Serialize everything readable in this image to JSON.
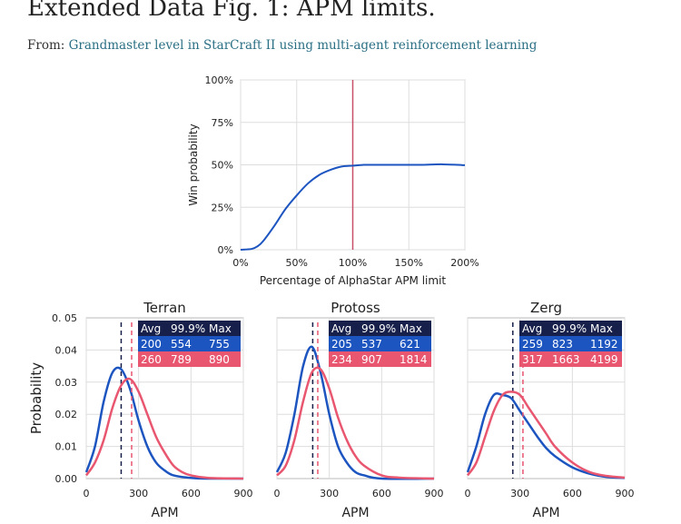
{
  "header": {
    "title": "Extended Data Fig. 1: APM limits.",
    "from_label": "From:",
    "source_link": "Grandmaster level in StarCraft II using multi-agent reinforcement learning"
  },
  "colors": {
    "blue": "#1d55c0",
    "pink": "#e8566f",
    "navy": "#17204a",
    "limit_line": "#c8506a"
  },
  "chart_data": [
    {
      "type": "line",
      "title": "",
      "xlabel": "Percentage of AlphaStar APM limit",
      "ylabel": "Win probability",
      "xlim": [
        0,
        200
      ],
      "ylim": [
        0,
        100
      ],
      "xticks": [
        {
          "v": 0,
          "label": "0%"
        },
        {
          "v": 50,
          "label": "50%"
        },
        {
          "v": 100,
          "label": "100%"
        },
        {
          "v": 150,
          "label": "150%"
        },
        {
          "v": 200,
          "label": "200%"
        }
      ],
      "yticks": [
        {
          "v": 0,
          "label": "0%"
        },
        {
          "v": 25,
          "label": "25%"
        },
        {
          "v": 50,
          "label": "50%"
        },
        {
          "v": 75,
          "label": "75%"
        },
        {
          "v": 100,
          "label": "100%"
        }
      ],
      "vline": 100,
      "series": [
        {
          "name": "win",
          "x": [
            0,
            10,
            15,
            20,
            30,
            40,
            50,
            60,
            70,
            80,
            90,
            100,
            110,
            120,
            140,
            160,
            180,
            200
          ],
          "y": [
            0,
            0.5,
            2,
            5,
            14,
            24,
            32,
            39,
            44,
            47,
            49,
            49.5,
            50,
            50,
            50,
            50,
            50.3,
            49.8
          ]
        }
      ]
    },
    {
      "type": "line",
      "title": "Terran",
      "xlabel": "APM",
      "ylabel": "Probability",
      "xlim": [
        0,
        900
      ],
      "ylim": [
        0,
        0.05
      ],
      "xticks": [
        {
          "v": 0,
          "label": "0"
        },
        {
          "v": 300,
          "label": "300"
        },
        {
          "v": 600,
          "label": "600"
        },
        {
          "v": 900,
          "label": "900"
        }
      ],
      "yticks": [
        {
          "v": 0,
          "label": "0.00"
        },
        {
          "v": 0.01,
          "label": "0.01"
        },
        {
          "v": 0.02,
          "label": "0.02"
        },
        {
          "v": 0.03,
          "label": "0.03"
        },
        {
          "v": 0.04,
          "label": "0.04"
        },
        {
          "v": 0.05,
          "label": "0. 05"
        }
      ],
      "table": {
        "header": [
          "Avg",
          "99.9%",
          "Max"
        ],
        "rows": [
          [
            "200",
            "554",
            "755"
          ],
          [
            "260",
            "789",
            "890"
          ]
        ]
      },
      "series": [
        {
          "name": "blue",
          "avg": 200,
          "x": [
            0,
            50,
            100,
            150,
            200,
            250,
            300,
            350,
            400,
            450,
            500,
            600,
            700,
            900
          ],
          "y": [
            0.002,
            0.01,
            0.024,
            0.033,
            0.034,
            0.028,
            0.018,
            0.01,
            0.005,
            0.0025,
            0.001,
            0.0002,
            0,
            0
          ]
        },
        {
          "name": "pink",
          "avg": 260,
          "x": [
            0,
            50,
            100,
            150,
            200,
            250,
            300,
            350,
            400,
            450,
            500,
            550,
            600,
            700,
            900
          ],
          "y": [
            0.001,
            0.005,
            0.012,
            0.022,
            0.029,
            0.031,
            0.027,
            0.02,
            0.013,
            0.008,
            0.004,
            0.002,
            0.001,
            0.0002,
            0
          ]
        }
      ]
    },
    {
      "type": "line",
      "title": "Protoss",
      "xlabel": "APM",
      "ylabel": "",
      "xlim": [
        0,
        900
      ],
      "ylim": [
        0,
        0.05
      ],
      "xticks": [
        {
          "v": 0,
          "label": "0"
        },
        {
          "v": 300,
          "label": "300"
        },
        {
          "v": 600,
          "label": "600"
        },
        {
          "v": 900,
          "label": "900"
        }
      ],
      "yticks": [],
      "table": {
        "header": [
          "Avg",
          "99.9%",
          "Max"
        ],
        "rows": [
          [
            "205",
            "537",
            "621"
          ],
          [
            "234",
            "907",
            "1814"
          ]
        ]
      },
      "series": [
        {
          "name": "blue",
          "avg": 205,
          "x": [
            0,
            50,
            100,
            150,
            200,
            250,
            300,
            350,
            400,
            450,
            500,
            600,
            900
          ],
          "y": [
            0.002,
            0.008,
            0.02,
            0.035,
            0.041,
            0.033,
            0.02,
            0.01,
            0.005,
            0.002,
            0.001,
            0,
            0
          ]
        },
        {
          "name": "pink",
          "avg": 234,
          "x": [
            0,
            50,
            100,
            150,
            200,
            250,
            300,
            350,
            400,
            450,
            500,
            600,
            700,
            900
          ],
          "y": [
            0.001,
            0.004,
            0.012,
            0.024,
            0.033,
            0.034,
            0.028,
            0.019,
            0.012,
            0.007,
            0.004,
            0.001,
            0.0003,
            0
          ]
        }
      ]
    },
    {
      "type": "line",
      "title": "Zerg",
      "xlabel": "APM",
      "ylabel": "",
      "xlim": [
        0,
        900
      ],
      "ylim": [
        0,
        0.05
      ],
      "xticks": [
        {
          "v": 0,
          "label": "0"
        },
        {
          "v": 300,
          "label": "300"
        },
        {
          "v": 600,
          "label": "600"
        },
        {
          "v": 900,
          "label": "900"
        }
      ],
      "yticks": [],
      "table": {
        "header": [
          "Avg",
          "99.9%",
          "Max"
        ],
        "rows": [
          [
            "259",
            "823",
            "1192"
          ],
          [
            "317",
            "1663",
            "4199"
          ]
        ]
      },
      "series": [
        {
          "name": "blue",
          "avg": 259,
          "x": [
            0,
            50,
            100,
            150,
            200,
            250,
            300,
            350,
            400,
            450,
            500,
            600,
            700,
            800,
            900
          ],
          "y": [
            0.002,
            0.01,
            0.02,
            0.026,
            0.026,
            0.025,
            0.021,
            0.017,
            0.013,
            0.0095,
            0.007,
            0.0035,
            0.0015,
            0.0005,
            0.0002
          ]
        },
        {
          "name": "pink",
          "avg": 317,
          "x": [
            0,
            50,
            100,
            150,
            200,
            250,
            300,
            350,
            400,
            450,
            500,
            600,
            700,
            800,
            900
          ],
          "y": [
            0.001,
            0.005,
            0.013,
            0.021,
            0.026,
            0.027,
            0.026,
            0.022,
            0.018,
            0.014,
            0.01,
            0.005,
            0.002,
            0.0008,
            0.0003
          ]
        }
      ]
    }
  ]
}
